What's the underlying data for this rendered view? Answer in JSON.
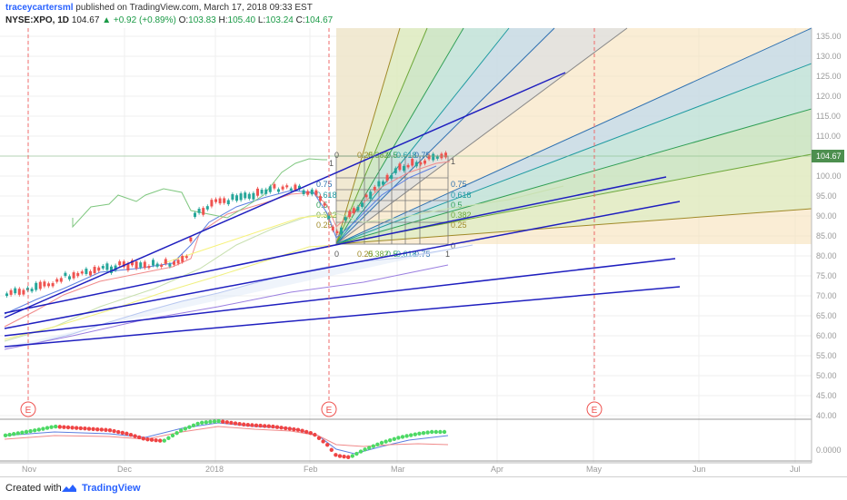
{
  "header": {
    "author": "traceycartersml",
    "published_text": "published on TradingView.com, March 17, 2018 09:33 EST",
    "symbol": "NYSE:XPO, 1D",
    "last": "104.67",
    "change_arrow": "▲",
    "change": "+0.92 (+0.89%)",
    "o_label": "O:",
    "o_value": "103.83",
    "h_label": "H:",
    "h_value": "105.40",
    "l_label": "L:",
    "l_value": "103.24",
    "c_label": "C:",
    "c_value": "104.67"
  },
  "price_axis": {
    "labels": [
      "135.00",
      "130.00",
      "125.00",
      "120.00",
      "115.00",
      "110.00",
      "105.00",
      "100.00",
      "95.00",
      "90.00",
      "85.00",
      "80.00",
      "75.00",
      "70.00",
      "65.00",
      "60.00",
      "55.00",
      "50.00",
      "45.00",
      "40.00"
    ],
    "current_price": "104.67",
    "oscillator_label": "0.0000"
  },
  "time_axis": {
    "labels": [
      "Nov",
      "Dec",
      "2018",
      "Feb",
      "Mar",
      "Apr",
      "May",
      "Jun",
      "Jul"
    ]
  },
  "fib_levels": {
    "top_row": [
      "0",
      "0.25",
      "0.382",
      "0.5",
      "0.618",
      "0.75",
      "1"
    ],
    "bottom_row": [
      "0",
      "0.25",
      "0.382",
      "0.5",
      "0.618",
      "0.75",
      "1"
    ],
    "right_col": [
      "1",
      "0.75",
      "0.618",
      "0.5",
      "0.382",
      "0.25",
      "0"
    ],
    "left_col": [
      "1",
      "0.75",
      "0.618",
      "0.5",
      "0.382",
      "0.25",
      "0"
    ]
  },
  "earnings_markers": [
    "E",
    "E",
    "E"
  ],
  "footer": {
    "created_with": "Created with",
    "brand": "TradingView"
  },
  "colors": {
    "up": "#26a69a",
    "down": "#ef5350",
    "trendline": "#1f1fbf",
    "fib_box": "#f5deb3",
    "grid": "#eeeeee"
  }
}
